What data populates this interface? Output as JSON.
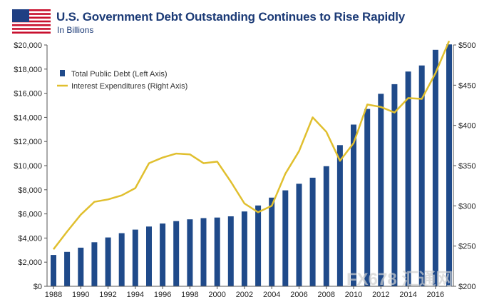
{
  "title": "U.S. Government Debt Outstanding Continues to Rise Rapidly",
  "subtitle": "In Billions",
  "watermark": "FX678 汇通网",
  "colors": {
    "bar": "#1f4a8a",
    "line": "#e0bf2e",
    "title": "#1b3a76",
    "flag_red": "#c8102e",
    "flag_blue": "#1f3f83"
  },
  "legend": [
    {
      "label": "Total Public Debt (Left Axis)",
      "color": "#1f4a8a",
      "kind": "bar"
    },
    {
      "label": "Interest Expenditures (Right Axis)",
      "color": "#e0bf2e",
      "kind": "line"
    }
  ],
  "chart_data": {
    "type": "bar",
    "title": "U.S. Government Debt Outstanding Continues to Rise Rapidly",
    "subtitle": "In Billions",
    "x": [
      1988,
      1989,
      1990,
      1991,
      1992,
      1993,
      1994,
      1995,
      1996,
      1997,
      1998,
      1999,
      2000,
      2001,
      2002,
      2003,
      2004,
      2005,
      2006,
      2007,
      2008,
      2009,
      2010,
      2011,
      2012,
      2013,
      2014,
      2015,
      2016,
      2017
    ],
    "series": [
      {
        "name": "Total Public Debt (Left Axis)",
        "type": "bar",
        "axis": "left",
        "values": [
          2600,
          2850,
          3200,
          3650,
          4050,
          4400,
          4700,
          4950,
          5200,
          5400,
          5550,
          5650,
          5700,
          5800,
          6200,
          6700,
          7350,
          7950,
          8500,
          9000,
          9950,
          11700,
          13400,
          14700,
          15950,
          16750,
          17800,
          18300,
          19600,
          20050
        ]
      },
      {
        "name": "Interest Expenditures (Right Axis)",
        "type": "line",
        "axis": "right",
        "values": [
          246,
          268,
          289,
          305,
          308,
          313,
          322,
          353,
          360,
          365,
          364,
          353,
          355,
          330,
          303,
          292,
          300,
          340,
          368,
          410,
          392,
          356,
          378,
          426,
          423,
          416,
          434,
          433,
          465,
          505
        ]
      }
    ],
    "left_axis": {
      "ylim": [
        0,
        20000
      ],
      "ticks": [
        "$0",
        "$2,000",
        "$4,000",
        "$6,000",
        "$8,000",
        "$10,000",
        "$12,000",
        "$14,000",
        "$16,000",
        "$18,000",
        "$20,000"
      ]
    },
    "right_axis": {
      "ylim": [
        200,
        500
      ],
      "ticks": [
        "$200",
        "$250",
        "$300",
        "$350",
        "$400",
        "$450",
        "$500"
      ]
    },
    "x_ticks": [
      "1988",
      "1990",
      "1992",
      "1994",
      "1996",
      "1998",
      "2000",
      "2002",
      "2004",
      "2006",
      "2008",
      "2010",
      "2012",
      "2014",
      "2016"
    ],
    "grid": false,
    "legend_position": "top-left"
  }
}
